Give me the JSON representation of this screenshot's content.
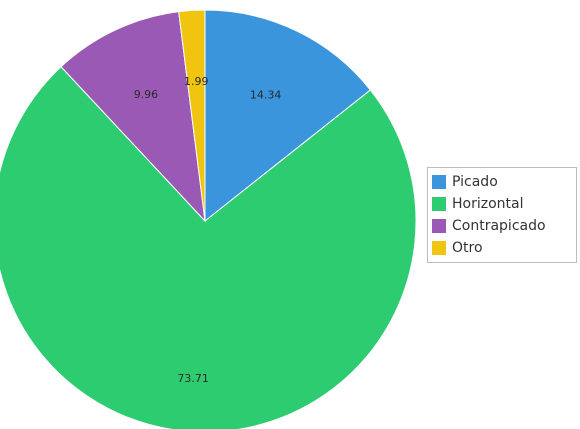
{
  "chart_data": {
    "type": "pie",
    "categories": [
      "Picado",
      "Horizontal",
      "Contrapicado",
      "Otro"
    ],
    "values": [
      14.34,
      73.71,
      9.96,
      1.99
    ],
    "value_labels": [
      "14.34",
      "73.71",
      "9.96",
      "1.99"
    ],
    "colors": [
      "#3a95dc",
      "#2ecc71",
      "#9b59b6",
      "#f1c40f"
    ],
    "start_angle_deg": 0,
    "direction": "clockwise",
    "legend_position": "right"
  }
}
